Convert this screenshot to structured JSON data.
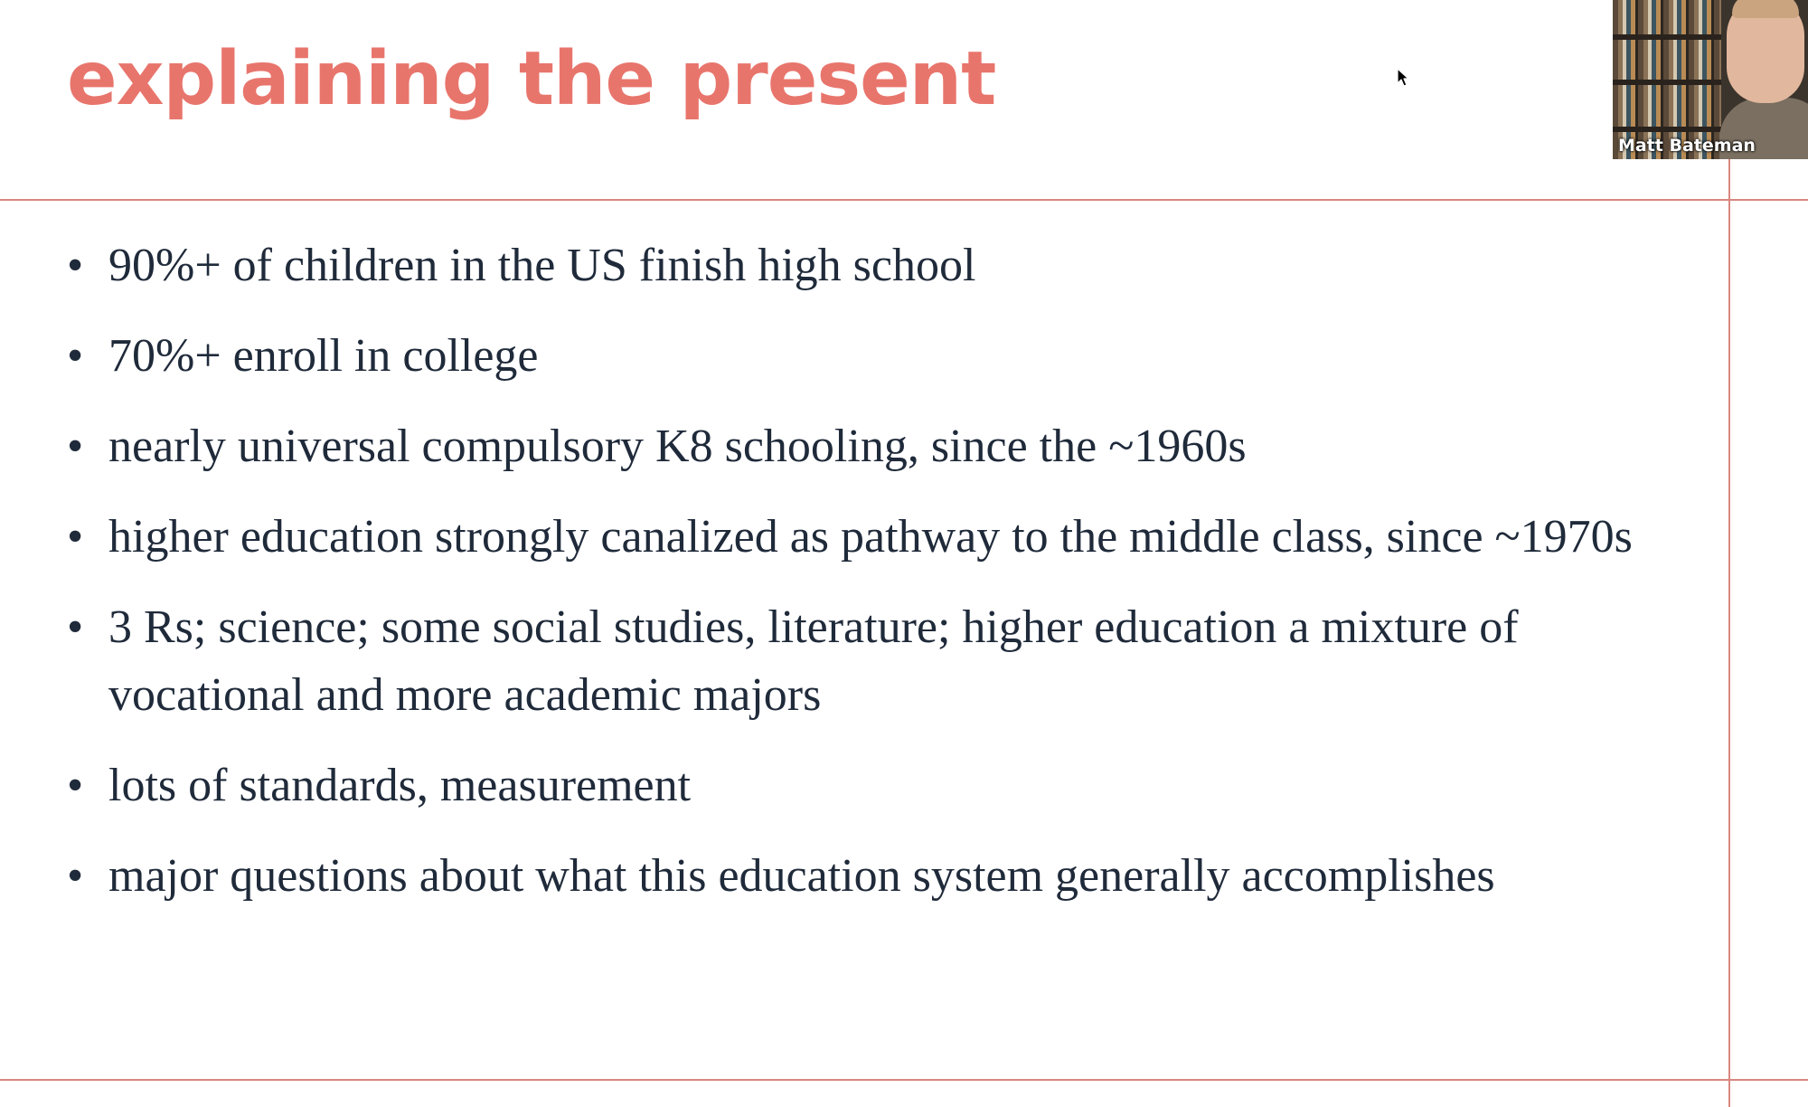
{
  "slide": {
    "title": "explaining the present",
    "bullet_symbol": "•",
    "bullets": [
      "90%+ of children in the US finish high school",
      "70%+ enroll in college",
      "nearly universal compulsory K8 schooling, since the ~1960s",
      "higher education strongly canalized as pathway to the middle class, since ~1970s",
      "3 Rs; science; some social studies, literature; higher education a mixture of vocational and more academic majors",
      "lots of standards, measurement",
      "major questions about what this education system generally accomplishes"
    ]
  },
  "video_tile": {
    "participant_name": "Matt Bateman"
  },
  "colors": {
    "title": "#e8756c",
    "rules": "#d9867f",
    "body_text": "#1f2a3a"
  },
  "icons": {
    "cursor": "mouse-pointer-icon"
  }
}
